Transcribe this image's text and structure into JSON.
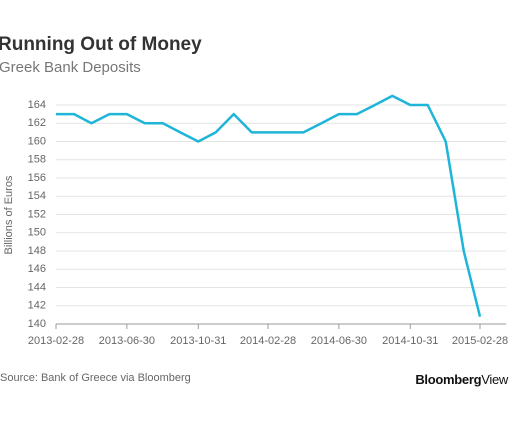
{
  "chart_data": {
    "type": "line",
    "title": "Running Out of Money",
    "subtitle": "Greek Bank Deposits",
    "y_label": "Billions of Euros",
    "source": "Source: Bank of Greece via Bloomberg",
    "logo": {
      "bold": "Bloomberg",
      "light": "View"
    },
    "x": [
      "2013-02-28",
      "2013-03-31",
      "2013-04-30",
      "2013-05-31",
      "2013-06-30",
      "2013-07-31",
      "2013-08-31",
      "2013-09-30",
      "2013-10-31",
      "2013-11-30",
      "2013-12-31",
      "2014-01-31",
      "2014-02-28",
      "2014-03-31",
      "2014-04-30",
      "2014-05-31",
      "2014-06-30",
      "2014-07-31",
      "2014-08-31",
      "2014-09-30",
      "2014-10-31",
      "2014-11-30",
      "2014-12-31",
      "2015-01-31",
      "2015-02-28"
    ],
    "series": [
      {
        "name": "Greek Bank Deposits",
        "color": "#1fb5d8",
        "values": [
          163,
          163,
          162,
          163,
          163,
          162,
          162,
          161,
          160,
          161,
          163,
          161,
          161,
          161,
          161,
          162,
          163,
          163,
          164,
          165,
          164,
          164,
          160,
          148,
          140.8
        ]
      }
    ],
    "xlim": [
      "2013-02-28",
      "2015-02-28"
    ],
    "xticks": [
      "2013-02-28",
      "2013-06-30",
      "2013-10-31",
      "2014-02-28",
      "2014-06-30",
      "2014-10-31",
      "2015-02-28"
    ],
    "ylim": [
      140,
      164
    ],
    "yticks": [
      140,
      142,
      144,
      146,
      148,
      150,
      152,
      154,
      156,
      158,
      160,
      162,
      164
    ],
    "grid": true
  }
}
